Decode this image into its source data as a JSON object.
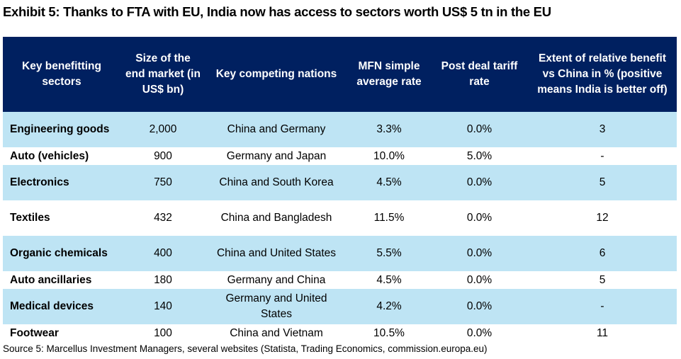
{
  "title": "Exhibit 5: Thanks to FTA with EU, India now has access to sectors worth US$ 5 tn in the EU",
  "table": {
    "headers": [
      "Key benefitting sectors",
      "Size of the end market (in US$ bn)",
      "Key competing nations",
      "MFN simple average rate",
      "Post deal tariff rate",
      "Extent of relative benefit vs China in % (positive means India is better off)"
    ],
    "rows": [
      {
        "sector": "Engineering goods",
        "size": "2,000",
        "competitors": "China and Germany",
        "mfn": "3.3%",
        "post": "0.0%",
        "benefit": "3"
      },
      {
        "sector": "Auto (vehicles)",
        "size": "900",
        "competitors": "Germany and Japan",
        "mfn": "10.0%",
        "post": "5.0%",
        "benefit": "-"
      },
      {
        "sector": "Electronics",
        "size": "750",
        "competitors": "China and South Korea",
        "mfn": "4.5%",
        "post": "0.0%",
        "benefit": "5"
      },
      {
        "sector": "Textiles",
        "size": "432",
        "competitors": "China and Bangladesh",
        "mfn": "11.5%",
        "post": "0.0%",
        "benefit": "12"
      },
      {
        "sector": "Organic chemicals",
        "size": "400",
        "competitors": "China and United States",
        "mfn": "5.5%",
        "post": "0.0%",
        "benefit": "6"
      },
      {
        "sector": "Auto ancillaries",
        "size": "180",
        "competitors": "Germany and China",
        "mfn": "4.5%",
        "post": "0.0%",
        "benefit": "5"
      },
      {
        "sector": "Medical devices",
        "size": "140",
        "competitors": "Germany and United States",
        "mfn": "4.2%",
        "post": "0.0%",
        "benefit": "-"
      },
      {
        "sector": "Footwear",
        "size": "100",
        "competitors": "China and Vietnam",
        "mfn": "10.5%",
        "post": "0.0%",
        "benefit": "11"
      }
    ]
  },
  "source": "Source 5: Marcellus Investment Managers, several websites (Statista, Trading Economics, commission.europa.eu)",
  "colors": {
    "header_bg": "#002060",
    "shade_row": "#bee4f4"
  }
}
